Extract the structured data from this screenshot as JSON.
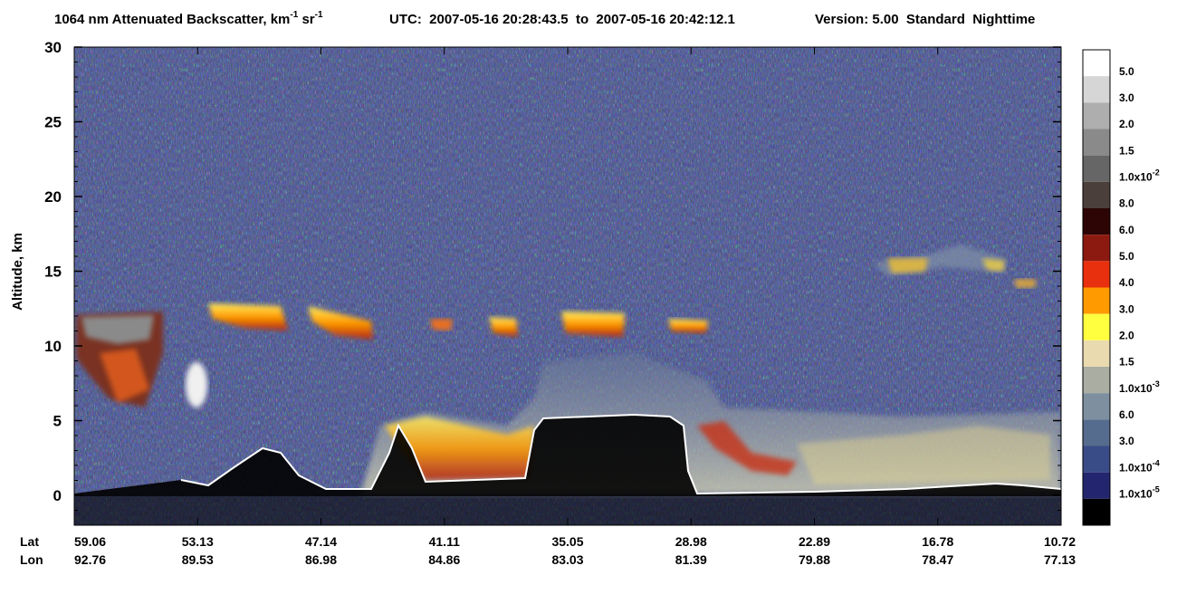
{
  "title": {
    "main": "1064 nm Attenuated Backscatter, km",
    "exp1": "-1",
    "unit2": " sr",
    "exp2": "-1",
    "utc": "UTC:  2007-05-16 20:28:43.5  to  2007-05-16 20:42:12.1",
    "version": "Version: 5.00  Standard  Nighttime"
  },
  "y_axis": {
    "label": "Altitude, km",
    "ylim": [
      -2,
      30
    ],
    "yticks": [
      0,
      5,
      10,
      15,
      20,
      25,
      30
    ]
  },
  "x_axis": {
    "lat_title": "Lat",
    "lon_title": "Lon",
    "lat": [
      "59.06",
      "53.13",
      "47.14",
      "41.11",
      "35.05",
      "28.98",
      "22.89",
      "16.78",
      "10.72"
    ],
    "lon": [
      "92.76",
      "89.53",
      "86.98",
      "84.86",
      "83.03",
      "81.39",
      "79.88",
      "78.47",
      "77.13"
    ]
  },
  "colorbar": {
    "colors": [
      "#ffffff",
      "#d6d6d6",
      "#aeaeae",
      "#8a8a8a",
      "#666666",
      "#4a3f3b",
      "#2c0504",
      "#8c1a10",
      "#e8300e",
      "#ff9a00",
      "#ffff40",
      "#eadab0",
      "#a9ada2",
      "#7e8fa0",
      "#566c8e",
      "#3a4c88",
      "#23266f",
      "#000000"
    ],
    "labels": [
      {
        "text": "5.0"
      },
      {
        "text": "3.0"
      },
      {
        "text": "2.0"
      },
      {
        "text": "1.5"
      },
      {
        "text": "1.0x10",
        "sup": "-2"
      },
      {
        "text": "8.0"
      },
      {
        "text": "6.0"
      },
      {
        "text": "5.0"
      },
      {
        "text": "4.0"
      },
      {
        "text": "3.0"
      },
      {
        "text": "2.0"
      },
      {
        "text": "1.5"
      },
      {
        "text": "1.0x10",
        "sup": "-3"
      },
      {
        "text": "6.0"
      },
      {
        "text": "3.0"
      },
      {
        "text": "1.0x10",
        "sup": "-4"
      },
      {
        "text": "1.0x10",
        "sup": "-5"
      }
    ]
  }
}
